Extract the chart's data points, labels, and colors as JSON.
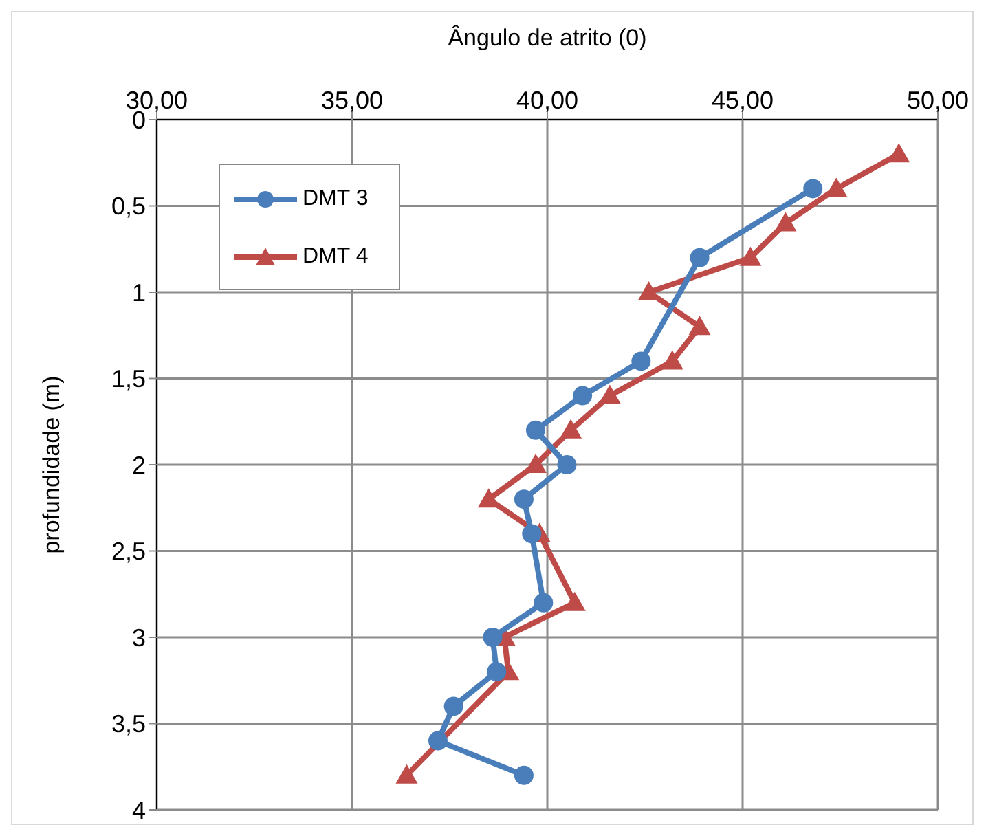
{
  "chart_data": {
    "type": "line",
    "xlabel": "Ângulo de atrito (0)",
    "ylabel": "profundidade (m)",
    "xlim": [
      30,
      50
    ],
    "xticks": [
      {
        "value": 30,
        "label": "30,00"
      },
      {
        "value": 35,
        "label": "35,00"
      },
      {
        "value": 40,
        "label": "40,00"
      },
      {
        "value": 45,
        "label": "45,00"
      },
      {
        "value": 50,
        "label": "50,00"
      }
    ],
    "ylim": [
      4,
      0
    ],
    "yticks": [
      0,
      {
        "value": 0.5,
        "label": "0,5"
      },
      1,
      {
        "value": 1.5,
        "label": "1,5"
      },
      2,
      {
        "value": 2.5,
        "label": "2,5"
      },
      3,
      {
        "value": 3.5,
        "label": "3,5"
      },
      4
    ],
    "grid": true,
    "legend": "top left",
    "line_style": "solid",
    "series": [
      {
        "name": "DMT 3",
        "color": "#4a7ebb",
        "marker": "circle",
        "x": [
          46.8,
          43.9,
          42.4,
          40.9,
          39.7,
          40.5,
          39.4,
          39.6,
          39.9,
          38.6,
          38.7,
          37.6,
          37.2,
          39.4
        ],
        "values": [
          0.4,
          0.8,
          1.4,
          1.6,
          1.8,
          2.0,
          2.2,
          2.4,
          2.8,
          3.0,
          3.2,
          3.4,
          3.6,
          3.8
        ]
      },
      {
        "name": "DMT 4",
        "color": "#be4b48",
        "marker": "triangle",
        "x": [
          49.0,
          47.4,
          46.1,
          45.2,
          42.6,
          43.9,
          43.2,
          41.6,
          40.6,
          39.7,
          38.5,
          39.8,
          40.7,
          38.9,
          39.0,
          36.4
        ],
        "values": [
          0.2,
          0.4,
          0.6,
          0.8,
          1.0,
          1.2,
          1.4,
          1.6,
          1.8,
          2.0,
          2.2,
          2.4,
          2.8,
          3.0,
          3.2,
          3.8
        ]
      }
    ]
  }
}
